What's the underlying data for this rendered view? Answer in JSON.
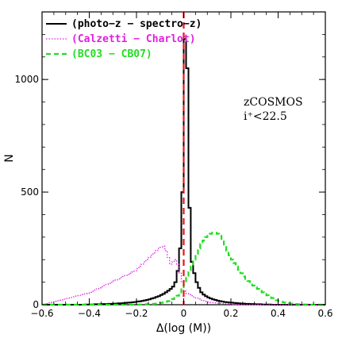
{
  "chart_data": {
    "type": "histogram",
    "xlabel": "Δ(log (M))",
    "ylabel": "N",
    "xlim": [
      -0.6,
      0.6
    ],
    "ylim": [
      0,
      1300
    ],
    "xticks": [
      -0.6,
      -0.4,
      -0.2,
      0,
      0.2,
      0.4,
      0.6
    ],
    "xtick_labels": [
      "−0.6",
      "−0.4",
      "−0.2",
      "0",
      "0.2",
      "0.4",
      "0.6"
    ],
    "yticks": [
      0,
      500,
      1000
    ],
    "ytick_labels": [
      "0",
      "500",
      "1000"
    ],
    "legend_position": "top-left",
    "annotation_lines": [
      "zCOSMOS",
      "i⁺<22.5"
    ],
    "reference_line": {
      "x": 0,
      "color": "#e8141a",
      "style": "dashed"
    },
    "series": [
      {
        "name": "(photo−z − spectro−z)",
        "color": "#000000",
        "style": "solid",
        "bin_width": 0.01,
        "x_start": -0.6,
        "values": [
          0,
          0,
          0,
          0,
          0,
          0,
          0,
          0,
          0,
          0,
          0,
          0,
          0,
          0,
          0,
          0,
          0,
          0,
          1,
          1,
          1,
          1,
          2,
          2,
          2,
          3,
          3,
          3,
          4,
          4,
          5,
          5,
          6,
          6,
          7,
          8,
          9,
          10,
          11,
          12,
          14,
          15,
          17,
          19,
          21,
          24,
          27,
          30,
          34,
          38,
          43,
          48,
          55,
          62,
          70,
          80,
          100,
          150,
          250,
          500,
          1180,
          1050,
          430,
          190,
          140,
          100,
          75,
          55,
          45,
          38,
          32,
          28,
          24,
          21,
          18,
          16,
          14,
          12,
          11,
          10,
          9,
          8,
          7,
          6,
          5,
          5,
          4,
          4,
          3,
          3,
          2,
          2,
          2,
          1,
          1,
          1,
          1,
          0,
          0,
          0,
          0,
          0,
          0,
          0,
          0,
          0,
          0,
          0,
          0,
          0,
          0,
          0,
          0,
          0,
          0,
          0,
          0,
          0,
          0,
          0,
          0
        ]
      },
      {
        "name": "(Calzetti − Charlot)",
        "color": "#e020e0",
        "style": "dotted",
        "bin_width": 0.01,
        "x_start": -0.6,
        "values": [
          0,
          2,
          5,
          8,
          12,
          15,
          18,
          20,
          22,
          25,
          28,
          30,
          32,
          35,
          38,
          40,
          42,
          45,
          48,
          50,
          55,
          60,
          65,
          70,
          75,
          80,
          85,
          90,
          95,
          100,
          105,
          110,
          115,
          120,
          125,
          130,
          135,
          140,
          145,
          150,
          160,
          170,
          180,
          190,
          200,
          210,
          220,
          230,
          240,
          250,
          255,
          260,
          240,
          210,
          180,
          190,
          200,
          180,
          140,
          100,
          60,
          50,
          45,
          40,
          35,
          30,
          25,
          20,
          18,
          15,
          12,
          10,
          9,
          8,
          7,
          6,
          5,
          4,
          3,
          2,
          2,
          1,
          1,
          1,
          1,
          0,
          0,
          0,
          0,
          0,
          0,
          0,
          0,
          0,
          0,
          0,
          0,
          0,
          0,
          0,
          0,
          0,
          0,
          0,
          0,
          0,
          0,
          0,
          0,
          0,
          0,
          0,
          0,
          0,
          0,
          0,
          0,
          0,
          0,
          0,
          0
        ]
      },
      {
        "name": "(BC03 − CB07)",
        "color": "#22dd22",
        "style": "dashed",
        "bin_width": 0.01,
        "x_start": -0.6,
        "values": [
          0,
          0,
          0,
          0,
          0,
          0,
          0,
          0,
          0,
          0,
          0,
          0,
          0,
          0,
          0,
          0,
          0,
          0,
          0,
          0,
          0,
          0,
          0,
          0,
          0,
          0,
          0,
          0,
          0,
          0,
          0,
          0,
          0,
          0,
          0,
          0,
          0,
          0,
          0,
          0,
          0,
          1,
          1,
          1,
          2,
          2,
          3,
          4,
          5,
          6,
          8,
          10,
          13,
          16,
          20,
          25,
          30,
          40,
          55,
          75,
          100,
          120,
          145,
          170,
          200,
          225,
          250,
          270,
          285,
          300,
          310,
          315,
          320,
          320,
          315,
          305,
          285,
          260,
          240,
          220,
          200,
          185,
          170,
          155,
          140,
          125,
          115,
          105,
          95,
          85,
          78,
          70,
          62,
          55,
          48,
          42,
          36,
          30,
          25,
          20,
          16,
          13,
          10,
          8,
          6,
          5,
          4,
          3,
          2,
          2,
          1,
          1,
          1,
          0,
          0,
          0,
          0,
          0,
          0,
          0,
          0
        ]
      }
    ]
  }
}
